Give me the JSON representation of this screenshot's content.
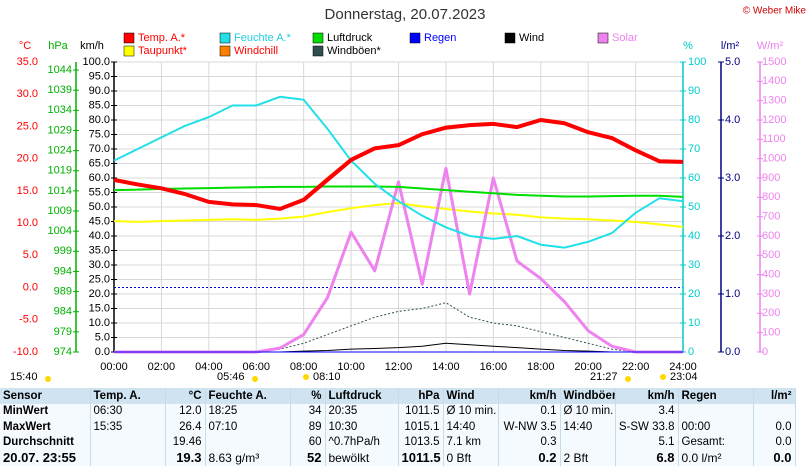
{
  "chart_data": {
    "type": "line",
    "title": "Donnerstag, 20.07.2023",
    "copyright": "© Weber Mike",
    "x": [
      0,
      1,
      2,
      3,
      4,
      5,
      6,
      7,
      8,
      9,
      10,
      11,
      12,
      13,
      14,
      15,
      16,
      17,
      18,
      19,
      20,
      21,
      22,
      23,
      24
    ],
    "xlim": [
      0,
      24
    ],
    "xticks": [
      {
        "value": 0,
        "label": "00:00"
      },
      {
        "value": 2,
        "label": "02:00"
      },
      {
        "value": 4,
        "label": "04:00"
      },
      {
        "value": 6,
        "label": "06:00"
      },
      {
        "value": 8,
        "label": "08:00"
      },
      {
        "value": 10,
        "label": "10:00"
      },
      {
        "value": 12,
        "label": "12:00"
      },
      {
        "value": 14,
        "label": "14:00"
      },
      {
        "value": 16,
        "label": "16:00"
      },
      {
        "value": 18,
        "label": "18:00"
      },
      {
        "value": 20,
        "label": "20:00"
      },
      {
        "value": 22,
        "label": "22:00"
      },
      {
        "value": 24,
        "label": "24:00"
      }
    ],
    "grid": true,
    "axes": [
      {
        "label": "°C",
        "color": "#ff0000",
        "lim": [
          -10,
          35
        ],
        "ticks": [
          {
            "value": 35,
            "label": "35.0"
          },
          {
            "value": 30,
            "label": "30.0"
          },
          {
            "value": 25,
            "label": "25.0"
          },
          {
            "value": 20,
            "label": "20.0"
          },
          {
            "value": 15,
            "label": "15.0"
          },
          {
            "value": 10,
            "label": "10.0"
          },
          {
            "value": 5,
            "label": "5.0"
          },
          {
            "value": 0,
            "label": "0.0"
          },
          {
            "value": -5,
            "label": "-5.0"
          },
          {
            "value": -10,
            "label": "-10.0"
          }
        ]
      },
      {
        "label": "hPa",
        "color": "#00b000",
        "lim": [
          974,
          1046
        ],
        "ticks": [
          1044,
          1039,
          1034,
          1029,
          1024,
          1019,
          1014,
          1009,
          1004,
          999,
          994,
          989,
          984,
          979,
          974
        ]
      },
      {
        "label": "km/h",
        "color": "#000000",
        "lim": [
          0,
          100
        ],
        "ticks": [
          {
            "value": 100,
            "label": "100.0"
          },
          {
            "value": 95,
            "label": "95.0"
          },
          {
            "value": 90,
            "label": "90.0"
          },
          {
            "value": 85,
            "label": "85.0"
          },
          {
            "value": 80,
            "label": "80.0"
          },
          {
            "value": 75,
            "label": "75.0"
          },
          {
            "value": 70,
            "label": "70.0"
          },
          {
            "value": 65,
            "label": "65.0"
          },
          {
            "value": 60,
            "label": "60.0"
          },
          {
            "value": 55,
            "label": "55.0"
          },
          {
            "value": 50,
            "label": "50.0"
          },
          {
            "value": 45,
            "label": "45.0"
          },
          {
            "value": 40,
            "label": "40.0"
          },
          {
            "value": 35,
            "label": "35.0"
          },
          {
            "value": 30,
            "label": "30.0"
          },
          {
            "value": 25,
            "label": "25.0"
          },
          {
            "value": 20,
            "label": "20.0"
          },
          {
            "value": 15,
            "label": "15.0"
          },
          {
            "value": 10,
            "label": "10.0"
          },
          {
            "value": 5,
            "label": "5.0"
          },
          {
            "value": 0,
            "label": "0.0"
          }
        ]
      },
      {
        "label": "%",
        "color": "#00cccc",
        "lim": [
          0,
          100
        ],
        "ticks": [
          100,
          90,
          80,
          70,
          60,
          50,
          40,
          30,
          20,
          10,
          0
        ]
      },
      {
        "label": "l/m²",
        "color": "#000080",
        "lim": [
          0,
          5
        ],
        "ticks": [
          {
            "value": 5,
            "label": "5.0"
          },
          {
            "value": 4,
            "label": "4.0"
          },
          {
            "value": 3,
            "label": "3.0"
          },
          {
            "value": 2,
            "label": "2.0"
          },
          {
            "value": 1,
            "label": "1.0"
          },
          {
            "value": 0,
            "label": "0.0"
          }
        ]
      },
      {
        "label": "W/m²",
        "color": "#ee82ee",
        "lim": [
          0,
          1500
        ],
        "ticks": [
          1500,
          1400,
          1300,
          1200,
          1100,
          1000,
          900,
          800,
          700,
          600,
          500,
          400,
          300,
          200,
          100,
          0
        ]
      }
    ],
    "series": [
      {
        "name": "Temp. A.*",
        "color": "#ff0000",
        "label_color": "#ff0000",
        "axis": 0,
        "width": 4,
        "values": [
          16.7,
          16.0,
          15.4,
          14.5,
          13.3,
          12.9,
          12.8,
          12.2,
          13.6,
          16.7,
          19.8,
          21.6,
          22.1,
          23.8,
          24.8,
          25.2,
          25.4,
          24.9,
          26.0,
          25.5,
          24.1,
          23.2,
          21.3,
          19.6,
          19.5
        ]
      },
      {
        "name": "Feuchte A.*",
        "color": "#22e0e8",
        "label_color": "#22d0e0",
        "axis": 3,
        "width": 2,
        "values": [
          66,
          70,
          74,
          78,
          81,
          85,
          85,
          88,
          87,
          77,
          66,
          58,
          52,
          47,
          43,
          40,
          39,
          40,
          37,
          36,
          38,
          41,
          48,
          53,
          52
        ]
      },
      {
        "name": "Luftdruck",
        "color": "#00dd00",
        "label_color": "#000000",
        "axis": 1,
        "width": 2,
        "values": [
          1014.2,
          1014.3,
          1014.5,
          1014.6,
          1014.7,
          1014.8,
          1014.9,
          1015.0,
          1015.0,
          1015.1,
          1015.1,
          1015.1,
          1015.0,
          1014.6,
          1014.2,
          1013.8,
          1013.4,
          1013.0,
          1012.8,
          1012.6,
          1012.6,
          1012.7,
          1012.8,
          1012.8,
          1012.5
        ]
      },
      {
        "name": "Regen",
        "color": "#0000ff",
        "label_color": "#0000ff",
        "axis": 4,
        "width": 1,
        "values": [
          0,
          0,
          0,
          0,
          0,
          0,
          0,
          0,
          0,
          0,
          0,
          0,
          0,
          0,
          0,
          0,
          0,
          0,
          0,
          0,
          0,
          0,
          0,
          0,
          0
        ]
      },
      {
        "name": "Wind",
        "color": "#000000",
        "label_color": "#000000",
        "axis": 2,
        "width": 1,
        "values": [
          0,
          0,
          0,
          0,
          0,
          0,
          0,
          0,
          0.3,
          0.5,
          1.0,
          1.2,
          1.5,
          2.0,
          3.0,
          2.5,
          2.0,
          1.5,
          1.0,
          0.5,
          0.3,
          0,
          0,
          0,
          0
        ]
      },
      {
        "name": "Solar",
        "color": "#ee82ee",
        "label_color": "#ee82ee",
        "axis": 5,
        "width": 3,
        "values": [
          0,
          0,
          0,
          0,
          0,
          0,
          0,
          20,
          90,
          280,
          620,
          420,
          880,
          350,
          950,
          300,
          900,
          470,
          380,
          260,
          110,
          30,
          0,
          0,
          0
        ]
      },
      {
        "name": "Taupunkt*",
        "color": "#ffff00",
        "label_color": "#ff0000",
        "axis": 0,
        "width": 2,
        "values": [
          10.3,
          10.2,
          10.3,
          10.4,
          10.5,
          10.6,
          10.5,
          10.7,
          11.0,
          11.7,
          12.3,
          12.8,
          13.1,
          12.6,
          12.2,
          11.8,
          11.5,
          11.3,
          10.9,
          10.7,
          10.6,
          10.4,
          10.2,
          9.8,
          9.4
        ]
      },
      {
        "name": "Windchill",
        "color": "#ff8000",
        "label_color": "#ff0000",
        "axis": 0,
        "width": 2,
        "values": [
          16.7,
          16.0,
          15.4,
          14.5,
          13.3,
          12.9,
          12.8,
          12.2,
          13.8,
          17.0,
          20.0,
          21.7,
          22.2,
          23.9,
          25.0,
          25.3,
          25.5,
          25.0,
          26.1,
          25.6,
          24.2,
          23.2,
          21.3,
          19.6,
          19.5
        ]
      },
      {
        "name": "Windböen*",
        "color": "#2f4f4f",
        "label_color": "#000000",
        "axis": 2,
        "width": 1,
        "values": [
          0,
          0,
          0,
          0,
          0,
          0,
          0,
          1,
          3,
          6,
          9,
          12,
          14,
          15,
          17,
          12,
          10,
          9,
          7,
          5,
          3,
          1,
          0,
          0,
          0
        ]
      }
    ],
    "sun_moon": [
      "15:40",
      "05:46",
      "08:10",
      "21:27",
      "23:04"
    ]
  },
  "table": {
    "header": [
      "Sensor",
      "Temp. A.",
      "°C",
      "Feuchte A.",
      "%",
      "Luftdruck",
      "hPa",
      "Wind",
      "km/h",
      "Windböen",
      "km/h",
      "Regen",
      "l/m²"
    ],
    "rows": [
      [
        "MinWert",
        "06:30",
        "12.0",
        "18:25",
        "34",
        "20:35",
        "1011.5",
        "Ø 10 min.",
        "0.1",
        "Ø 10 min.",
        "3.4",
        null,
        null
      ],
      [
        "MaxWert",
        "15:35",
        "26.4",
        "07:10",
        "89",
        "10:30",
        "1015.1",
        "14:40",
        "W-NW 3.5",
        "14:40",
        "S-SW 33.8",
        "00:00",
        "0.0"
      ],
      [
        "Durchschnitt",
        null,
        "19.46",
        null,
        "60",
        "^0.7hPa/h",
        "1013.5",
        "7.1 km",
        "0.3",
        null,
        "5.1",
        "Gesamt:",
        "0.0"
      ],
      [
        "20.07. 23:55",
        null,
        "19.3",
        "8.63 g/m³",
        "52",
        "bewölkt",
        "1011.5",
        "0 Bft",
        "0.2",
        "2 Bft",
        "6.8",
        "0.0 l/m²",
        "0.0"
      ]
    ]
  }
}
